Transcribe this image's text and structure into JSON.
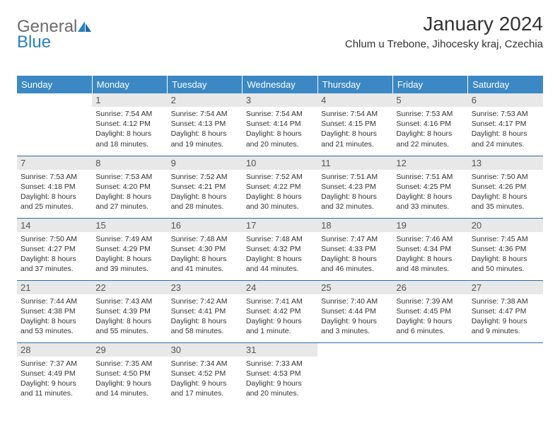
{
  "brand": {
    "part1": "General",
    "part2": "Blue"
  },
  "title": "January 2024",
  "location": "Chlum u Trebone, Jihocesky kraj, Czechia",
  "colors": {
    "header_bg": "#3b88c4",
    "header_text": "#ffffff",
    "daynum_bg": "#e8e8e8",
    "daynum_text": "#555555",
    "rule": "#2a6ea8",
    "body_text": "#333333",
    "logo_gray": "#6b6b6b",
    "logo_blue": "#2a7fbf",
    "background": "#ffffff"
  },
  "typography": {
    "title_fontsize": 28,
    "location_fontsize": 15,
    "dow_fontsize": 13,
    "daynum_fontsize": 13,
    "body_fontsize": 10.5,
    "font_family": "Arial"
  },
  "dow": [
    "Sunday",
    "Monday",
    "Tuesday",
    "Wednesday",
    "Thursday",
    "Friday",
    "Saturday"
  ],
  "weeks": [
    [
      null,
      {
        "n": "1",
        "sr": "7:54 AM",
        "ss": "4:12 PM",
        "dl": "8 hours and 18 minutes."
      },
      {
        "n": "2",
        "sr": "7:54 AM",
        "ss": "4:13 PM",
        "dl": "8 hours and 19 minutes."
      },
      {
        "n": "3",
        "sr": "7:54 AM",
        "ss": "4:14 PM",
        "dl": "8 hours and 20 minutes."
      },
      {
        "n": "4",
        "sr": "7:54 AM",
        "ss": "4:15 PM",
        "dl": "8 hours and 21 minutes."
      },
      {
        "n": "5",
        "sr": "7:53 AM",
        "ss": "4:16 PM",
        "dl": "8 hours and 22 minutes."
      },
      {
        "n": "6",
        "sr": "7:53 AM",
        "ss": "4:17 PM",
        "dl": "8 hours and 24 minutes."
      }
    ],
    [
      {
        "n": "7",
        "sr": "7:53 AM",
        "ss": "4:18 PM",
        "dl": "8 hours and 25 minutes."
      },
      {
        "n": "8",
        "sr": "7:53 AM",
        "ss": "4:20 PM",
        "dl": "8 hours and 27 minutes."
      },
      {
        "n": "9",
        "sr": "7:52 AM",
        "ss": "4:21 PM",
        "dl": "8 hours and 28 minutes."
      },
      {
        "n": "10",
        "sr": "7:52 AM",
        "ss": "4:22 PM",
        "dl": "8 hours and 30 minutes."
      },
      {
        "n": "11",
        "sr": "7:51 AM",
        "ss": "4:23 PM",
        "dl": "8 hours and 32 minutes."
      },
      {
        "n": "12",
        "sr": "7:51 AM",
        "ss": "4:25 PM",
        "dl": "8 hours and 33 minutes."
      },
      {
        "n": "13",
        "sr": "7:50 AM",
        "ss": "4:26 PM",
        "dl": "8 hours and 35 minutes."
      }
    ],
    [
      {
        "n": "14",
        "sr": "7:50 AM",
        "ss": "4:27 PM",
        "dl": "8 hours and 37 minutes."
      },
      {
        "n": "15",
        "sr": "7:49 AM",
        "ss": "4:29 PM",
        "dl": "8 hours and 39 minutes."
      },
      {
        "n": "16",
        "sr": "7:48 AM",
        "ss": "4:30 PM",
        "dl": "8 hours and 41 minutes."
      },
      {
        "n": "17",
        "sr": "7:48 AM",
        "ss": "4:32 PM",
        "dl": "8 hours and 44 minutes."
      },
      {
        "n": "18",
        "sr": "7:47 AM",
        "ss": "4:33 PM",
        "dl": "8 hours and 46 minutes."
      },
      {
        "n": "19",
        "sr": "7:46 AM",
        "ss": "4:34 PM",
        "dl": "8 hours and 48 minutes."
      },
      {
        "n": "20",
        "sr": "7:45 AM",
        "ss": "4:36 PM",
        "dl": "8 hours and 50 minutes."
      }
    ],
    [
      {
        "n": "21",
        "sr": "7:44 AM",
        "ss": "4:38 PM",
        "dl": "8 hours and 53 minutes."
      },
      {
        "n": "22",
        "sr": "7:43 AM",
        "ss": "4:39 PM",
        "dl": "8 hours and 55 minutes."
      },
      {
        "n": "23",
        "sr": "7:42 AM",
        "ss": "4:41 PM",
        "dl": "8 hours and 58 minutes."
      },
      {
        "n": "24",
        "sr": "7:41 AM",
        "ss": "4:42 PM",
        "dl": "9 hours and 1 minute."
      },
      {
        "n": "25",
        "sr": "7:40 AM",
        "ss": "4:44 PM",
        "dl": "9 hours and 3 minutes."
      },
      {
        "n": "26",
        "sr": "7:39 AM",
        "ss": "4:45 PM",
        "dl": "9 hours and 6 minutes."
      },
      {
        "n": "27",
        "sr": "7:38 AM",
        "ss": "4:47 PM",
        "dl": "9 hours and 9 minutes."
      }
    ],
    [
      {
        "n": "28",
        "sr": "7:37 AM",
        "ss": "4:49 PM",
        "dl": "9 hours and 11 minutes."
      },
      {
        "n": "29",
        "sr": "7:35 AM",
        "ss": "4:50 PM",
        "dl": "9 hours and 14 minutes."
      },
      {
        "n": "30",
        "sr": "7:34 AM",
        "ss": "4:52 PM",
        "dl": "9 hours and 17 minutes."
      },
      {
        "n": "31",
        "sr": "7:33 AM",
        "ss": "4:53 PM",
        "dl": "9 hours and 20 minutes."
      },
      null,
      null,
      null
    ]
  ],
  "labels": {
    "sunrise": "Sunrise:",
    "sunset": "Sunset:",
    "daylight": "Daylight:"
  }
}
